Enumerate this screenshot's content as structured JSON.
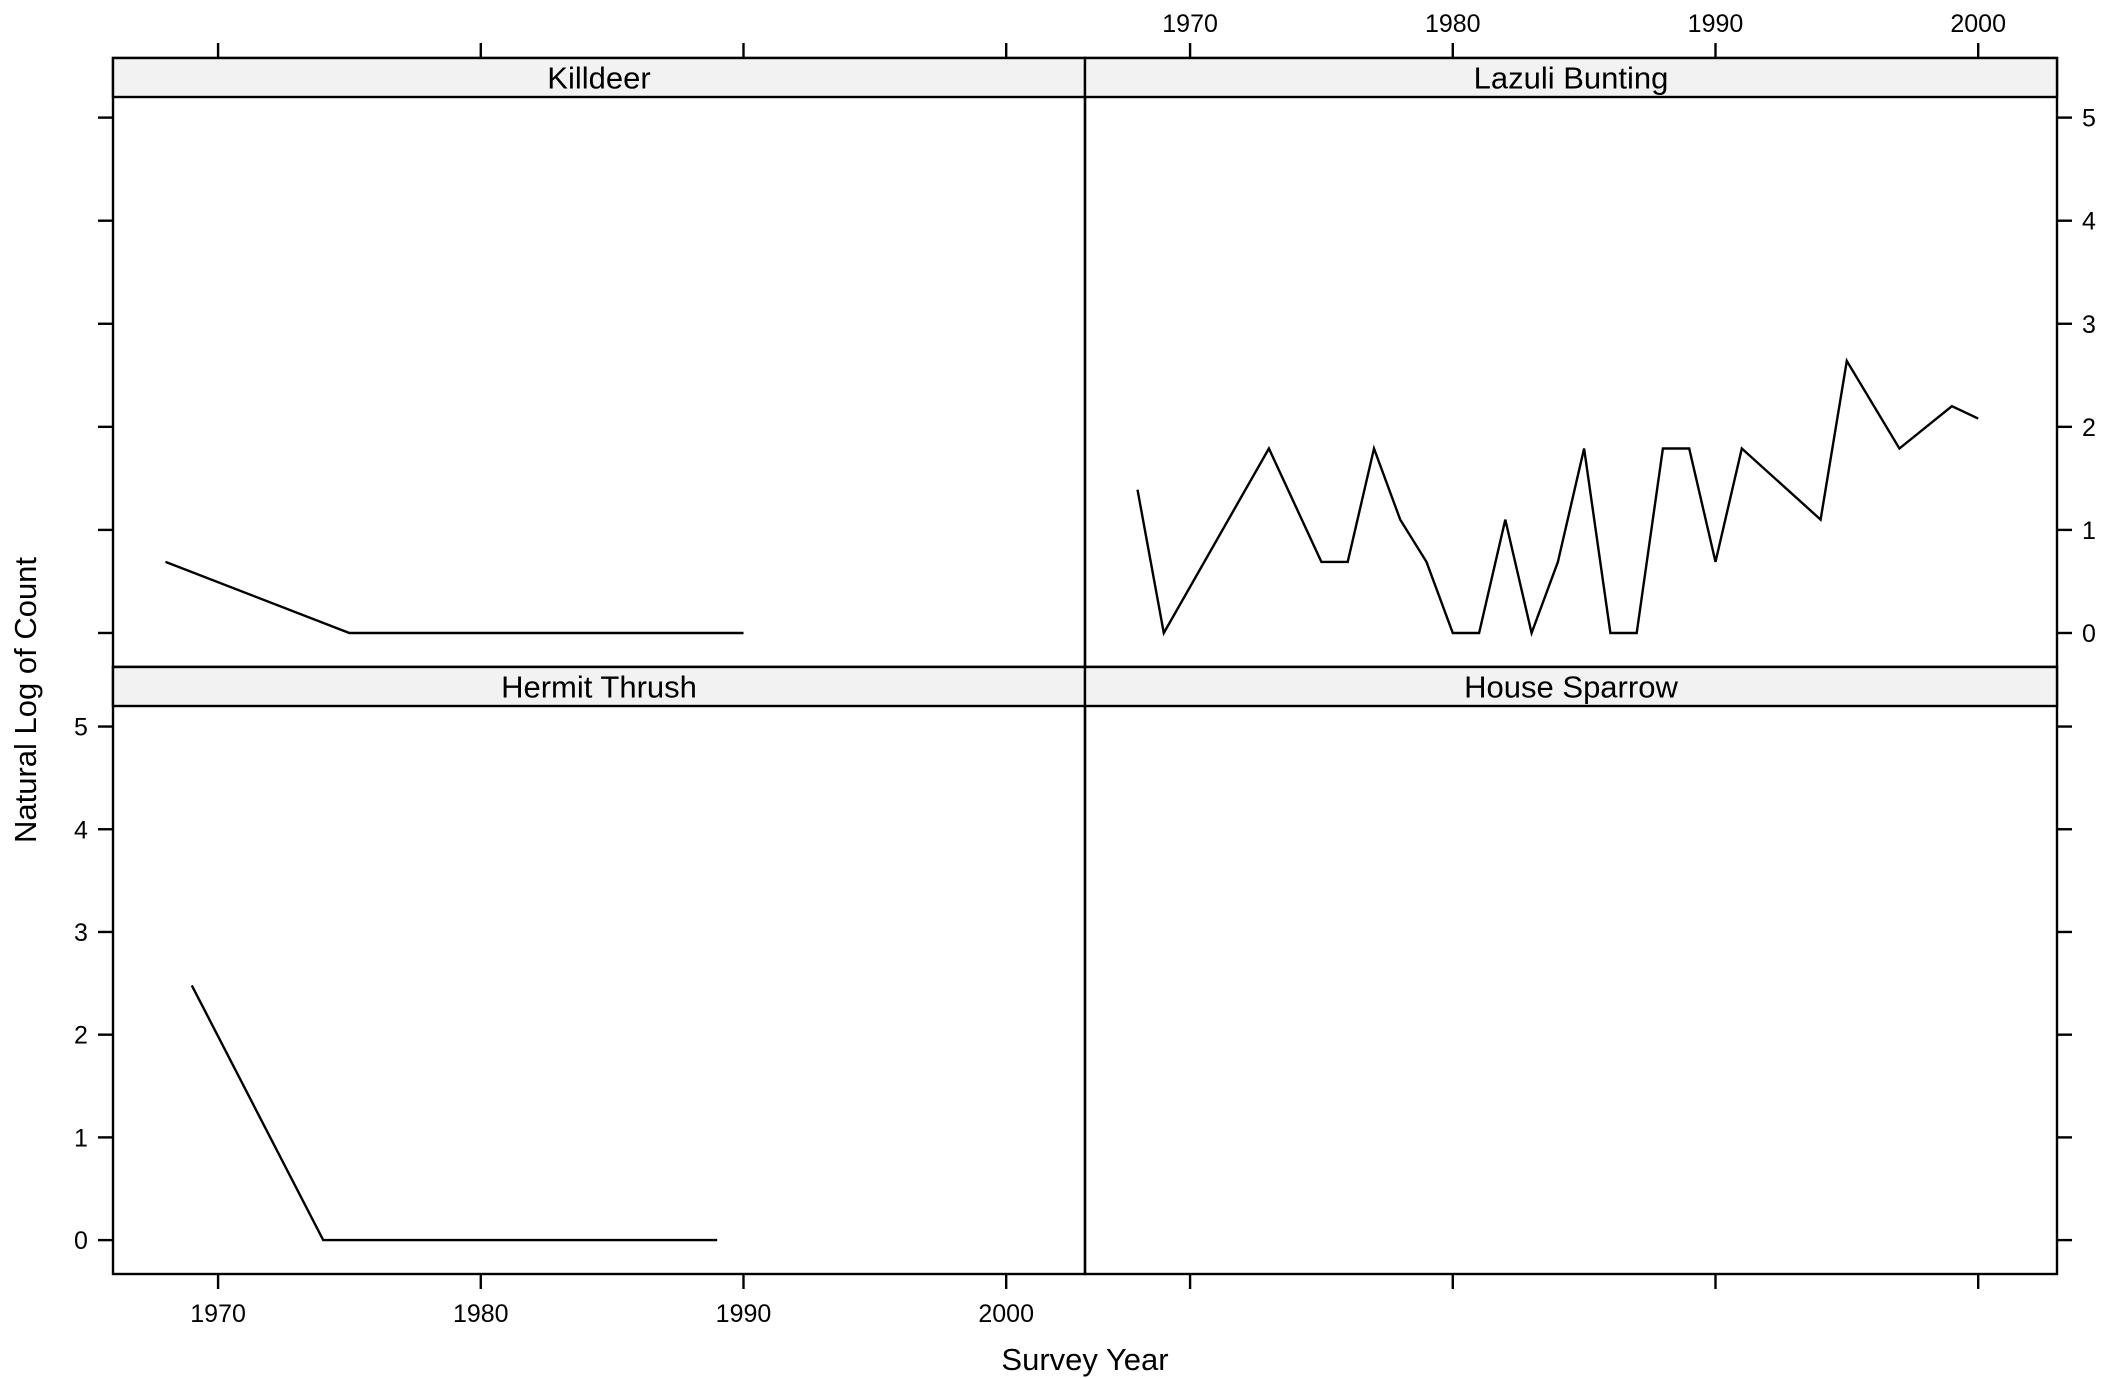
{
  "chart_data": {
    "type": "line",
    "layout": "2x2 trellis",
    "xlabel": "Survey Year",
    "ylabel": "Natural Log of Count",
    "xlim": [
      1966,
      2003
    ],
    "ylim": [
      -0.33,
      5.2
    ],
    "x_ticks": [
      1970,
      1980,
      1990,
      2000
    ],
    "y_ticks": [
      0,
      1,
      2,
      3,
      4,
      5
    ],
    "grid": false,
    "legend": "none",
    "colors": {
      "line": "#000000",
      "strip_background": "#f2f2f2",
      "frame": "#000000"
    },
    "panels": [
      {
        "strip": "Killdeer",
        "position": "top-left",
        "points": [
          [
            1968,
            0.69
          ],
          [
            1975,
            0
          ],
          [
            1990,
            0
          ]
        ]
      },
      {
        "strip": "Lazuli Bunting",
        "position": "top-right",
        "points": [
          [
            1968,
            1.39
          ],
          [
            1969,
            0
          ],
          [
            1973,
            1.79
          ],
          [
            1975,
            0.69
          ],
          [
            1976,
            0.69
          ],
          [
            1977,
            1.79
          ],
          [
            1978,
            1.1
          ],
          [
            1979,
            0.69
          ],
          [
            1980,
            0
          ],
          [
            1981,
            0
          ],
          [
            1982,
            1.1
          ],
          [
            1983,
            0
          ],
          [
            1984,
            0.69
          ],
          [
            1985,
            1.79
          ],
          [
            1986,
            0
          ],
          [
            1987,
            0
          ],
          [
            1988,
            1.79
          ],
          [
            1989,
            1.79
          ],
          [
            1990,
            0.69
          ],
          [
            1991,
            1.79
          ],
          [
            1994,
            1.1
          ],
          [
            1995,
            2.64
          ],
          [
            1997,
            1.79
          ],
          [
            1999,
            2.2
          ],
          [
            2000,
            2.08
          ]
        ]
      },
      {
        "strip": "Hermit Thrush",
        "position": "bottom-left",
        "points": [
          [
            1969,
            2.48
          ],
          [
            1974,
            0
          ],
          [
            1989,
            0
          ]
        ]
      },
      {
        "strip": "House Sparrow",
        "position": "bottom-right",
        "points": []
      }
    ]
  }
}
